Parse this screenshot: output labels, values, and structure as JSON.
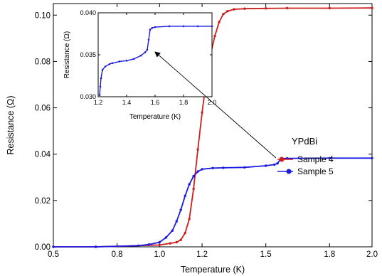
{
  "chart_data": [
    {
      "type": "line",
      "role": "main",
      "xlabel": "Temperature (K)",
      "ylabel": "Resistance (Ω)",
      "xlim": [
        0.5,
        2.0
      ],
      "ylim": [
        0.0,
        0.105
      ],
      "xticks": [
        "0.5",
        "0.8",
        "1.0",
        "1.2",
        "1.5",
        "1.8",
        "2.0"
      ],
      "yticks": [
        "0.00",
        "0.02",
        "0.04",
        "0.06",
        "0.08",
        "0.10"
      ],
      "grid": false,
      "legend": {
        "title": "YPdBi",
        "placement": "right",
        "entries": [
          "Sample 4",
          "Sample 5"
        ]
      },
      "series": [
        {
          "name": "Sample 4",
          "color": "#cc1f1f",
          "marker": "circle",
          "x": [
            0.5,
            0.7,
            0.9,
            1.0,
            1.05,
            1.08,
            1.1,
            1.12,
            1.14,
            1.16,
            1.18,
            1.2,
            1.22,
            1.24,
            1.26,
            1.28,
            1.3,
            1.32,
            1.35,
            1.4,
            1.5,
            1.6,
            1.8,
            2.0
          ],
          "y": [
            0.0,
            0.0,
            0.0005,
            0.0008,
            0.0015,
            0.002,
            0.003,
            0.006,
            0.012,
            0.025,
            0.042,
            0.058,
            0.072,
            0.083,
            0.091,
            0.097,
            0.1005,
            0.1017,
            0.1025,
            0.1028,
            0.1029,
            0.103,
            0.103,
            0.1031
          ]
        },
        {
          "name": "Sample 5",
          "color": "#1a1ae0",
          "marker": "circle",
          "x": [
            0.5,
            0.7,
            0.9,
            0.95,
            1.0,
            1.03,
            1.06,
            1.08,
            1.1,
            1.12,
            1.14,
            1.16,
            1.18,
            1.2,
            1.25,
            1.3,
            1.4,
            1.5,
            1.54,
            1.555,
            1.57,
            1.6,
            1.8,
            2.0
          ],
          "y": [
            0.0,
            0.0,
            0.0005,
            0.001,
            0.002,
            0.004,
            0.007,
            0.011,
            0.016,
            0.022,
            0.027,
            0.0305,
            0.0325,
            0.0335,
            0.034,
            0.0341,
            0.0343,
            0.035,
            0.0355,
            0.036,
            0.038,
            0.0382,
            0.0383,
            0.0383
          ]
        }
      ]
    },
    {
      "type": "line",
      "role": "inset",
      "xlabel": "Temperature (K)",
      "ylabel": "Resistance (Ω)",
      "xlim": [
        1.2,
        2.0
      ],
      "ylim": [
        0.03,
        0.04
      ],
      "xticks": [
        "1.2",
        "1.4",
        "1.6",
        "1.8",
        "2.0"
      ],
      "yticks": [
        "0.030",
        "0.035",
        "0.040"
      ],
      "series": [
        {
          "name": "Sample 5",
          "color": "#1a1ae0",
          "x": [
            1.21,
            1.215,
            1.22,
            1.23,
            1.25,
            1.28,
            1.3,
            1.35,
            1.4,
            1.45,
            1.5,
            1.53,
            1.545,
            1.555,
            1.565,
            1.58,
            1.6,
            1.7,
            1.8,
            1.9,
            2.0
          ],
          "y": [
            0.0302,
            0.0312,
            0.0322,
            0.0332,
            0.0336,
            0.0339,
            0.034,
            0.0342,
            0.0343,
            0.0345,
            0.0349,
            0.0353,
            0.0356,
            0.0368,
            0.038,
            0.0382,
            0.0383,
            0.0384,
            0.0384,
            0.0384,
            0.0384
          ]
        }
      ]
    }
  ]
}
